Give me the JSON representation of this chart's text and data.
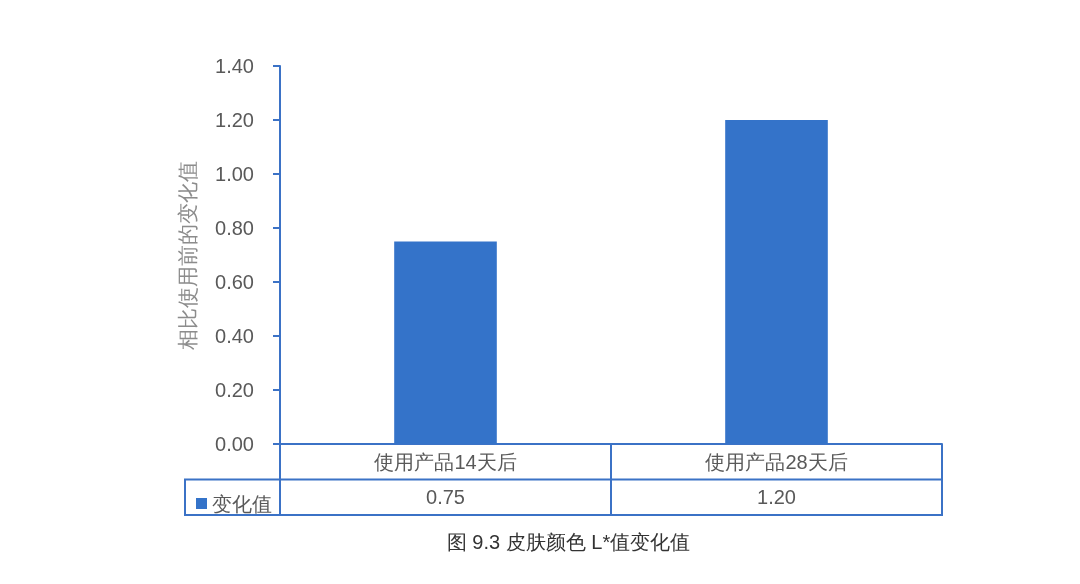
{
  "chart_data": {
    "type": "bar",
    "title": "图 9.3 皮肤颜色 L*值变化值",
    "ylabel": "相比使用前的变化值",
    "categories": [
      "使用产品14天后",
      "使用产品28天后"
    ],
    "series": [
      {
        "name": "变化值",
        "color": "#3473c9",
        "values": [
          0.75,
          1.2
        ],
        "value_labels": [
          "0.75",
          "1.20"
        ]
      }
    ],
    "ylim": [
      0,
      1.4
    ],
    "yticks": [
      {
        "value": 0,
        "label": "0.00"
      },
      {
        "value": 0.2,
        "label": "0.20"
      },
      {
        "value": 0.4,
        "label": "0.40"
      },
      {
        "value": 0.6,
        "label": "0.60"
      },
      {
        "value": 0.8,
        "label": "0.80"
      },
      {
        "value": 1,
        "label": "1.00"
      },
      {
        "value": 1.2,
        "label": "1.20"
      },
      {
        "value": 1.4,
        "label": "1.40"
      }
    ],
    "legend": "bottom left"
  }
}
